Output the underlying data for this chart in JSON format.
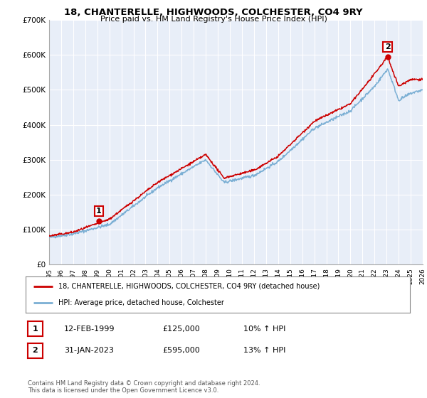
{
  "title": "18, CHANTERELLE, HIGHWOODS, COLCHESTER, CO4 9RY",
  "subtitle": "Price paid vs. HM Land Registry's House Price Index (HPI)",
  "legend_line1": "18, CHANTERELLE, HIGHWOODS, COLCHESTER, CO4 9RY (detached house)",
  "legend_line2": "HPI: Average price, detached house, Colchester",
  "annotation1_date": "12-FEB-1999",
  "annotation1_price": "£125,000",
  "annotation1_hpi": "10% ↑ HPI",
  "annotation2_date": "31-JAN-2023",
  "annotation2_price": "£595,000",
  "annotation2_hpi": "13% ↑ HPI",
  "footnote": "Contains HM Land Registry data © Crown copyright and database right 2024.\nThis data is licensed under the Open Government Licence v3.0.",
  "hpi_color": "#7bafd4",
  "price_color": "#cc0000",
  "annotation_box_color": "#cc0000",
  "plot_bg_color": "#e8eef8",
  "grid_color": "#ffffff",
  "ylim": [
    0,
    700000
  ],
  "yticks": [
    0,
    100000,
    200000,
    300000,
    400000,
    500000,
    600000,
    700000
  ],
  "ytick_labels": [
    "£0",
    "£100K",
    "£200K",
    "£300K",
    "£400K",
    "£500K",
    "£600K",
    "£700K"
  ],
  "sale1_year": 1999.12,
  "sale1_price": 125000,
  "sale2_year": 2023.08,
  "sale2_price": 595000
}
